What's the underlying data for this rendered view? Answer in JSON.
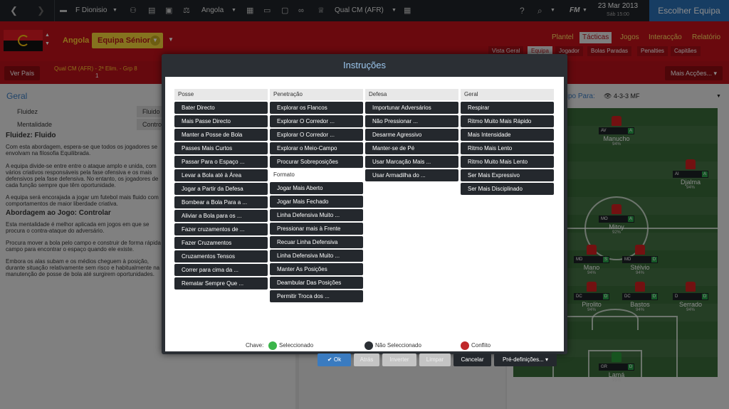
{
  "topbar": {
    "club": "F Dionisio",
    "nation": "Angola",
    "competition": "Qual CM (AFR)",
    "fm_label": "FM",
    "date": "23 Mar 2013",
    "date_sub": "Sáb 15:00",
    "continue_button": "Escolher Equipa"
  },
  "team": {
    "name": "Angola",
    "squad": "Equipa Sénior"
  },
  "main_tabs": [
    "Plantel",
    "Tácticas",
    "Jogos",
    "Interacção",
    "Relatório"
  ],
  "sub_tabs": [
    "Vista Geral",
    "Equipa",
    "Jogador",
    "Bolas Paradas",
    "Penalties",
    "Capitães"
  ],
  "subbar": {
    "view_nation": "Ver País",
    "info_line1": "Qual CM (AFR) - 2ª Elim. - Grp 8",
    "info_line2": "1",
    "more_actions": "Mais Acções..."
  },
  "left_panel": {
    "heading": "Geral",
    "rows": [
      {
        "label": "Fluidez",
        "value": "Fluido"
      },
      {
        "label": "Mentalidade",
        "value": "Controlo"
      }
    ],
    "title1": "Fluidez: Fluido",
    "text1": "Com esta abordagem, espera-se que todos os jogadores se envolvam na filosofia Equilibrada.",
    "text2": "A equipa divide-se entre entre o ataque amplo e unida, com vários criativos responsáveis pela fase ofensiva e os mais defensivos pela fase defensiva. No entanto, os jogadores de cada função sempre que têm oportunidade.",
    "text3": "A equipa será encorajada a jogar um futebol mais fluido com comportamentos de maior liberdade criativa.",
    "title2": "Abordagem ao Jogo: Controlar",
    "text4": "Esta mentalidade é melhor aplicada em jogos em que se procura o contra-ataque do adversário.",
    "text5": "Procura mover a bola pelo campo e construir de forma rápida o campo para encontrar o espaço quando ele existe.",
    "text6": "Embora os alas subam e os médios cheguem à posição, durante situação relativamente sem risco e habitualmente na manutenção de posse de bola até surgirem oportunidades."
  },
  "right_panel": {
    "heading": "Tipo Para:",
    "formation": "4-3-3 MF",
    "players": [
      {
        "pos": "AV",
        "name": "Manucho",
        "stat": "94%"
      },
      {
        "pos": "AI",
        "name": "Djalma",
        "stat": "94%"
      },
      {
        "pos": "MO",
        "name": "Mitoy",
        "stat": "92%"
      },
      {
        "pos": "MD",
        "name": "Mano",
        "stat": "94%"
      },
      {
        "pos": "MD",
        "name": "Stélvio",
        "stat": "94%"
      },
      {
        "pos": "DC",
        "name": "Pirolito",
        "stat": "94%"
      },
      {
        "pos": "DC",
        "name": "Bastos",
        "stat": "94%"
      },
      {
        "pos": "D",
        "name": "Serrado",
        "stat": "94%"
      },
      {
        "pos": "GR",
        "name": "Lamá",
        "stat": "95%"
      }
    ]
  },
  "modal": {
    "title": "Instruções",
    "columns": [
      {
        "heading": "Posse",
        "items": [
          "Bater Directo",
          "Mais Passe Directo",
          "Manter a Posse de Bola",
          "Passes Mais Curtos",
          "Passar Para o Espaço ...",
          "Levar a Bola até à Área",
          "Jogar a Partir da Defesa",
          "Bombear a Bola Para a ...",
          "Aliviar a Bola para os ...",
          "Fazer cruzamentos de ...",
          "Fazer Cruzamentos",
          "Cruzamentos Tensos",
          "Correr para cima da ...",
          "Rematar Sempre Que ..."
        ]
      },
      {
        "heading": "Penetração",
        "items": [
          "Explorar os Flancos",
          "Explorar O Corredor ...",
          "Explorar O Corredor ...",
          "Explorar o Meio-Campo",
          "Procurar Sobreposições"
        ],
        "heading2": "Formato",
        "items2": [
          "Jogar Mais Aberto",
          "Jogar Mais Fechado",
          "Linha Defensiva Muito ...",
          "Pressionar mais à Frente",
          "Recuar Linha Defensiva",
          "Linha Defensiva Muito ...",
          "Manter As Posições",
          "Deambular Das Posições",
          "Permitir Troca dos ..."
        ]
      },
      {
        "heading": "Defesa",
        "items": [
          "Importunar Adversários",
          "Não Pressionar ...",
          "Desarme Agressivo",
          "Manter-se de Pé",
          "Usar Marcação Mais ...",
          "Usar Armadilha do ..."
        ]
      },
      {
        "heading": "Geral",
        "items": [
          "Respirar",
          "Ritmo Muito Mais Rápido",
          "Mais Intensidade",
          "Ritmo Mais Lento",
          "Ritmo Muito Mais Lento",
          "Ser Mais Expressivo",
          "Ser Mais Disciplinado"
        ]
      }
    ],
    "key_label": "Chave:",
    "key_selected": "Seleccionado",
    "key_unselected": "Não Seleccionado",
    "key_conflict": "Conflito",
    "colors": {
      "selected": "#3bb54a",
      "unselected": "#2b2f34",
      "conflict": "#c0282a"
    },
    "buttons": {
      "ok": "Ok",
      "back": "Atrás",
      "invert": "Inverter",
      "clear": "Limpar",
      "cancel": "Cancelar",
      "presets": "Pré-definições..."
    }
  }
}
